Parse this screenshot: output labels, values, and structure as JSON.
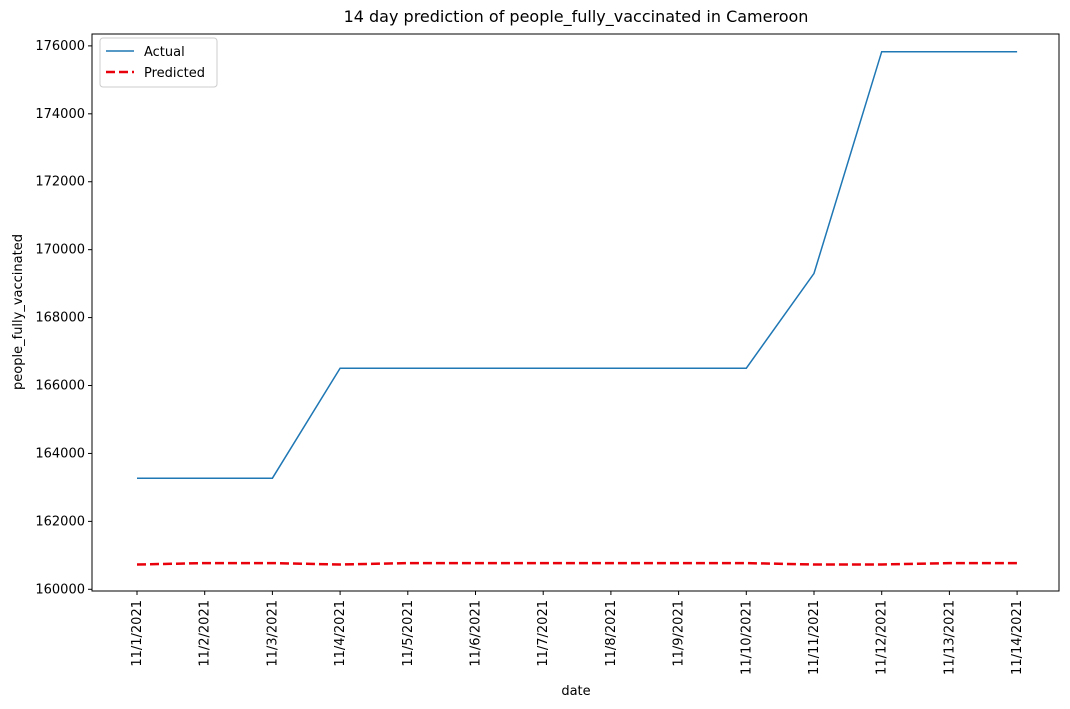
{
  "chart_data": {
    "type": "line",
    "title": "14 day prediction of people_fully_vaccinated in Cameroon",
    "xlabel": "date",
    "ylabel": "people_fully_vaccinated",
    "x": [
      "11/1/2021",
      "11/2/2021",
      "11/3/2021",
      "11/4/2021",
      "11/5/2021",
      "11/6/2021",
      "11/7/2021",
      "11/8/2021",
      "11/9/2021",
      "11/10/2021",
      "11/11/2021",
      "11/12/2021",
      "11/13/2021",
      "11/14/2021"
    ],
    "ylim": [
      159950,
      176350
    ],
    "yticks": [
      160000,
      162000,
      164000,
      166000,
      168000,
      170000,
      172000,
      174000,
      176000
    ],
    "legend_position": "top-left",
    "grid": false,
    "series": [
      {
        "name": "Actual",
        "color": "#1f77b4",
        "style": "solid",
        "values": [
          163270,
          163270,
          163270,
          166510,
          166510,
          166510,
          166510,
          166510,
          166510,
          166510,
          169300,
          175830,
          175830,
          175830
        ]
      },
      {
        "name": "Predicted",
        "color": "#e8000b",
        "style": "dashed",
        "values": [
          160730,
          160770,
          160770,
          160730,
          160770,
          160770,
          160770,
          160770,
          160770,
          160770,
          160730,
          160730,
          160770,
          160770
        ]
      }
    ]
  }
}
